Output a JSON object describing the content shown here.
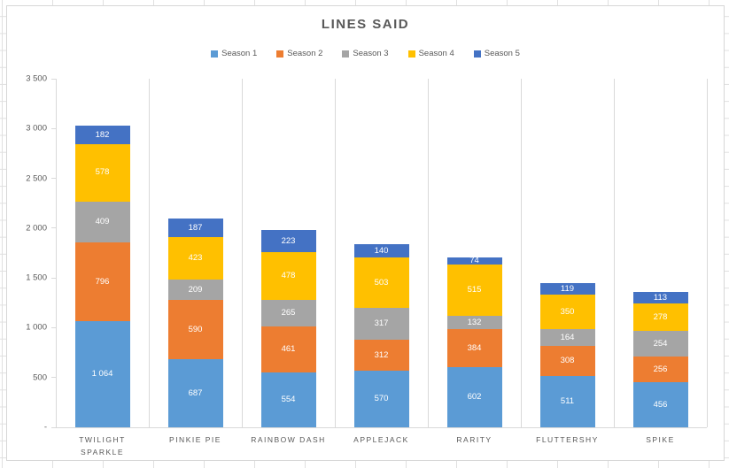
{
  "chart_data": {
    "type": "bar",
    "stacked": true,
    "title": "LINES SAID",
    "categories": [
      "TWILIGHT SPARKLE",
      "PINKIE PIE",
      "RAINBOW DASH",
      "APPLEJACK",
      "RARITY",
      "FLUTTERSHY",
      "SPIKE"
    ],
    "series": [
      {
        "name": "Season 1",
        "color": "#5B9BD5",
        "values": [
          1064,
          687,
          554,
          570,
          602,
          511,
          456
        ]
      },
      {
        "name": "Season 2",
        "color": "#ED7D31",
        "values": [
          796,
          590,
          461,
          312,
          384,
          308,
          256
        ]
      },
      {
        "name": "Season 3",
        "color": "#A5A5A5",
        "values": [
          409,
          209,
          265,
          317,
          132,
          164,
          254
        ]
      },
      {
        "name": "Season 4",
        "color": "#FFC000",
        "values": [
          578,
          423,
          478,
          503,
          515,
          350,
          278
        ]
      },
      {
        "name": "Season 5",
        "color": "#4472C4",
        "values": [
          182,
          187,
          223,
          140,
          74,
          119,
          113
        ]
      }
    ],
    "ylim": [
      0,
      3500
    ],
    "ytick_step": 500,
    "ytick_labels": [
      "-",
      "500",
      "1 000",
      "1 500",
      "2 000",
      "2 500",
      "3 000",
      "3 500"
    ],
    "gridlines": "vertical-category-boundaries",
    "legend_position": "top-center",
    "data_label_color": "#FFFFFF",
    "axis_text_color": "#595959",
    "gridline_color": "#D9D9D9"
  }
}
